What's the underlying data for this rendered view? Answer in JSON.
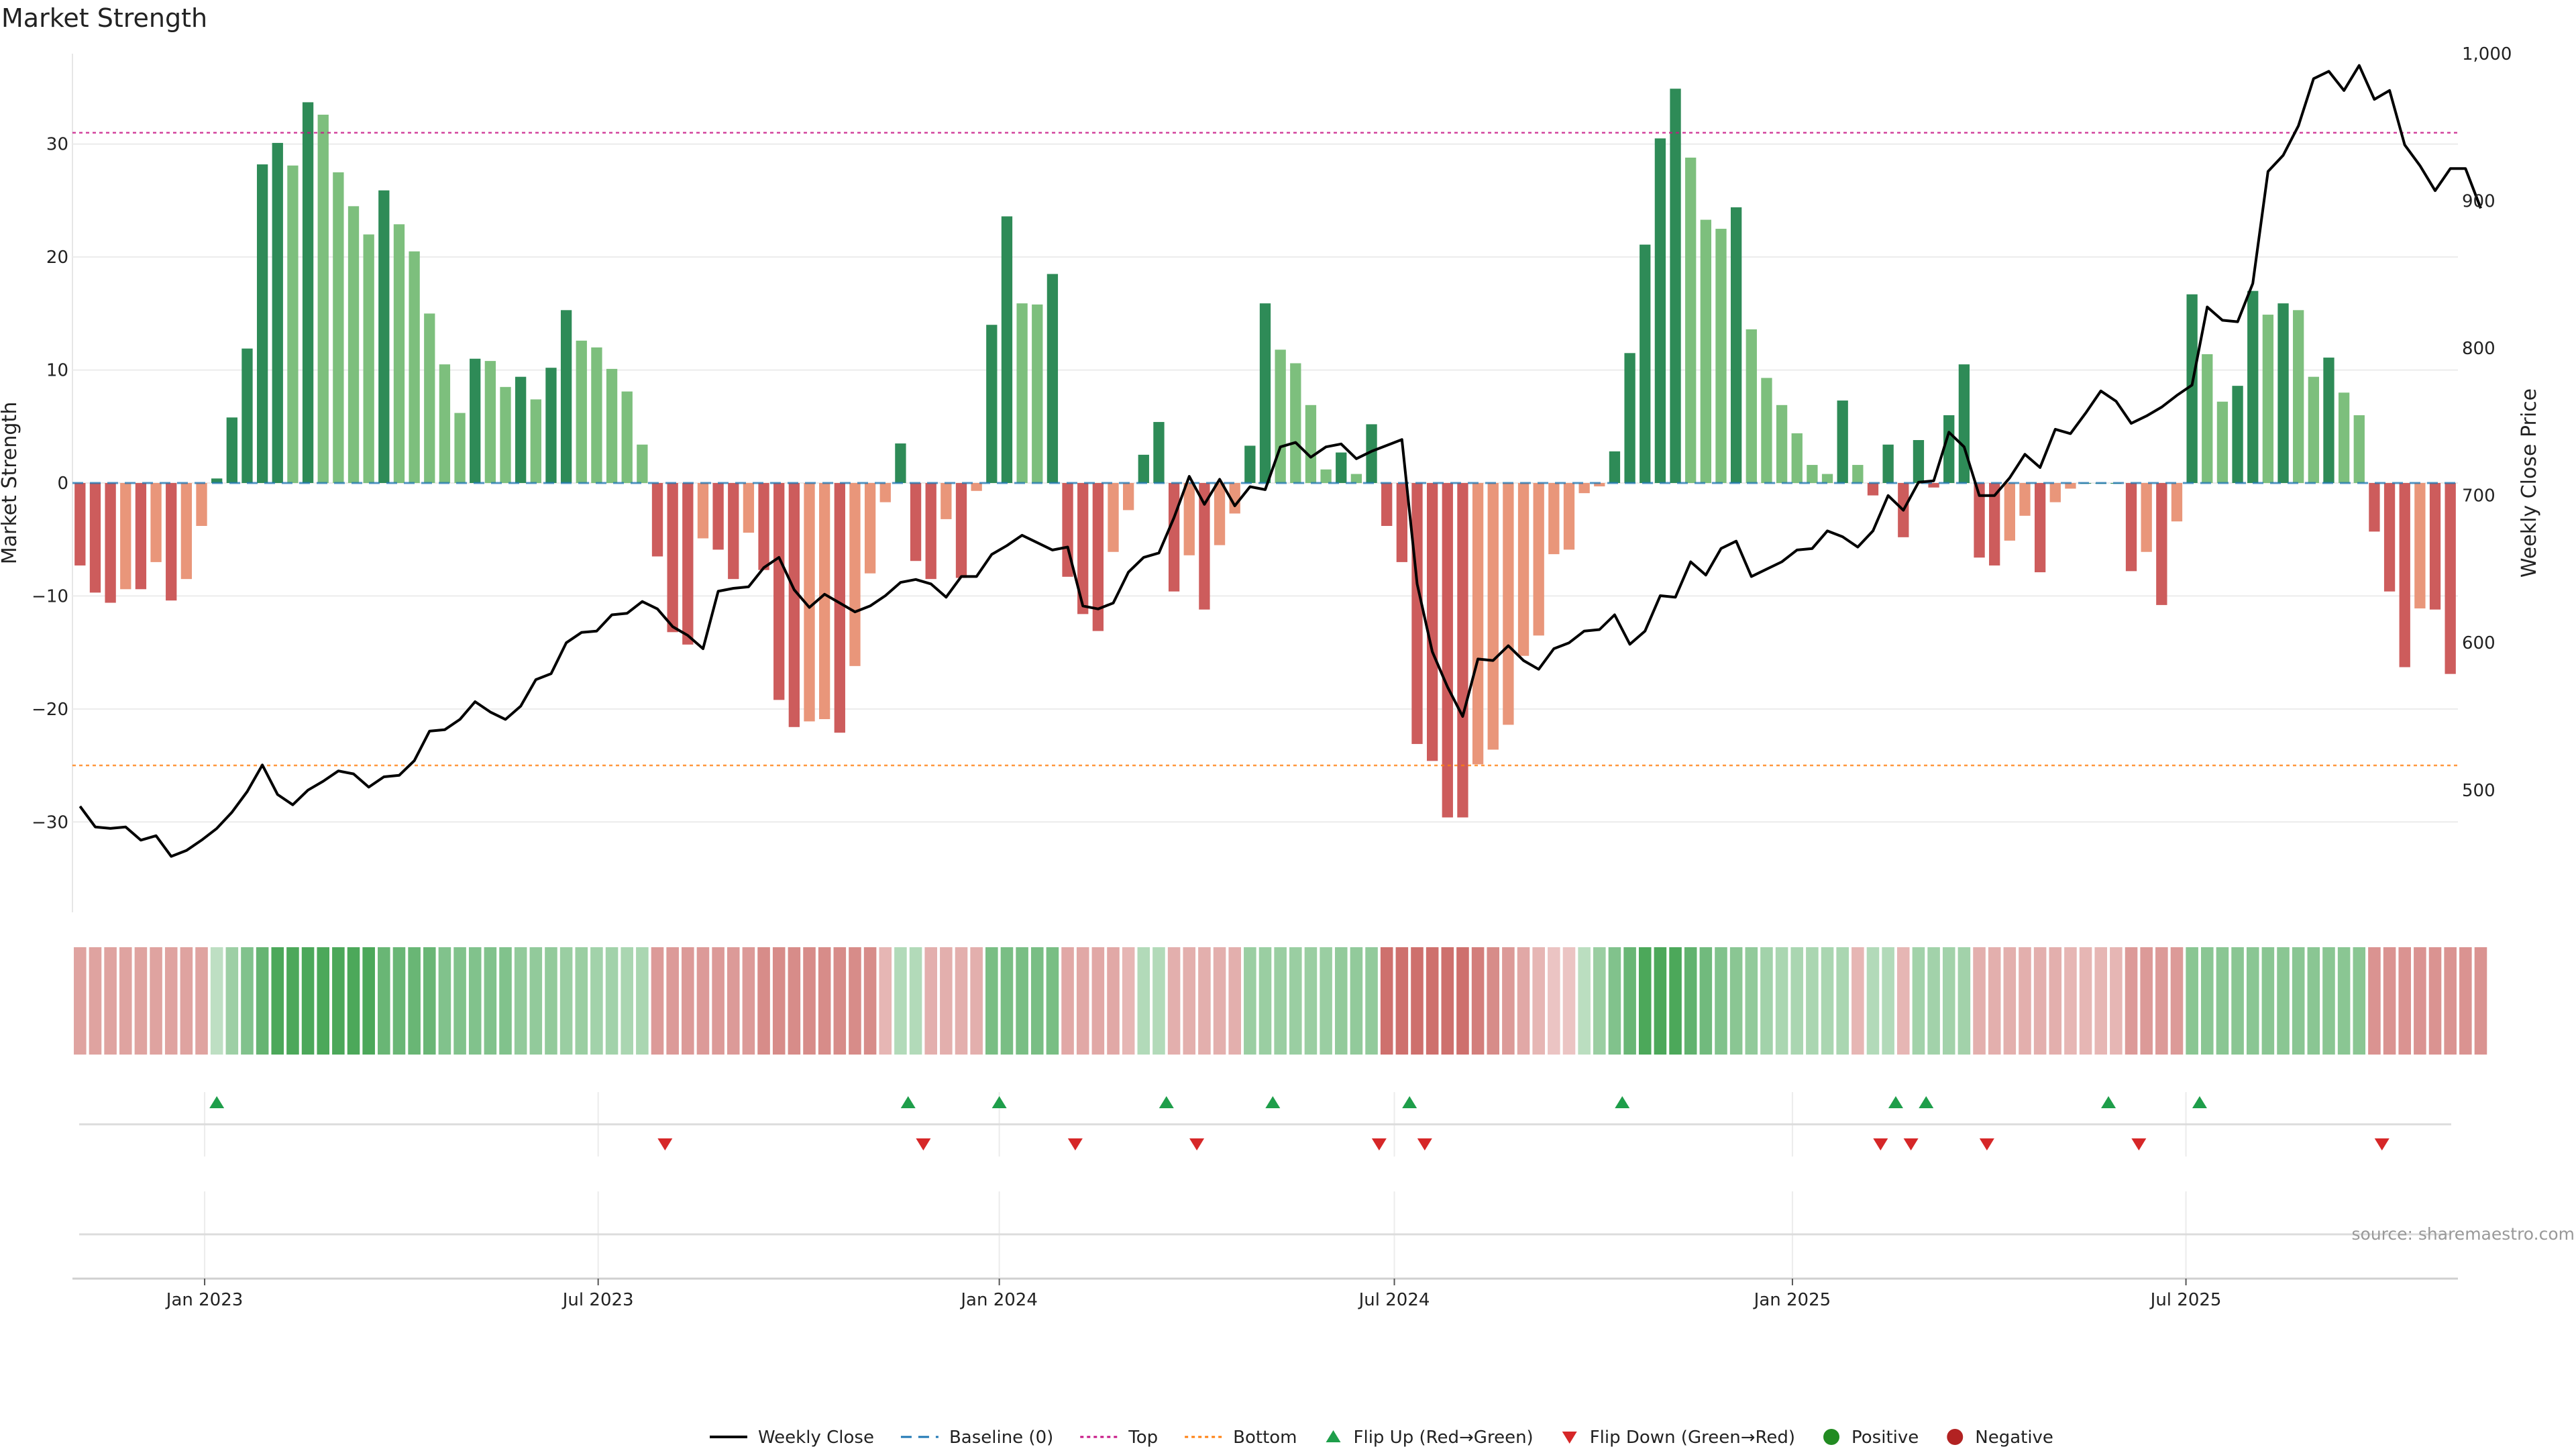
{
  "chart_data": {
    "type": "bar+line",
    "title": "Market Strength",
    "ylabel_left": "Market Strength",
    "ylabel_right": "Weekly Close Price",
    "ylim_left": [
      -38,
      38
    ],
    "ylim_right": [
      417,
      1000
    ],
    "yticks_left": [
      -30,
      -20,
      -10,
      0,
      10,
      20,
      30
    ],
    "yticks_right": [
      500,
      600,
      700,
      800,
      900,
      1000
    ],
    "yticks_right_labels": [
      "500",
      "600",
      "700",
      "800",
      "900",
      "1,000"
    ],
    "yticks_left_labels": [
      "−30",
      "−20",
      "−10",
      "0",
      "10",
      "20",
      "30"
    ],
    "top_threshold": 31,
    "bottom_threshold": -25,
    "baseline": 0,
    "x_ticks": [
      "Jan 2023",
      "Jul 2023",
      "Jan 2024",
      "Jul 2024",
      "Jan 2025",
      "Jul 2025"
    ],
    "x_tick_weeks": [
      8.2,
      34.1,
      60.5,
      86.5,
      112.7,
      138.6
    ],
    "market_strength": [
      -7.3,
      -9.7,
      -10.6,
      -9.4,
      -9.4,
      -7,
      -10.4,
      -8.5,
      -3.8,
      0.4,
      5.8,
      11.9,
      28.2,
      30.1,
      28.1,
      33.7,
      32.6,
      27.5,
      24.5,
      22,
      25.9,
      22.9,
      20.5,
      15,
      10.5,
      6.2,
      11,
      10.8,
      8.5,
      9.4,
      7.4,
      10.2,
      15.3,
      12.6,
      12,
      10.1,
      8.1,
      3.4,
      -6.5,
      -13.2,
      -14.3,
      -4.9,
      -5.9,
      -8.5,
      -4.4,
      -7.7,
      -19.2,
      -21.6,
      -21.1,
      -20.9,
      -22.1,
      -16.2,
      -8,
      -1.7,
      3.5,
      -6.9,
      -8.5,
      -3.2,
      -8.4,
      -0.7,
      14,
      23.6,
      15.9,
      15.8,
      18.5,
      -8.3,
      -11.6,
      -13.1,
      -6.1,
      -2.4,
      2.5,
      5.4,
      -9.6,
      -6.4,
      -11.2,
      -5.5,
      -2.7,
      3.3,
      15.9,
      11.8,
      10.6,
      6.9,
      1.2,
      2.7,
      0.8,
      5.2,
      -3.8,
      -7,
      -23.1,
      -24.6,
      -29.6,
      -29.6,
      -24.9,
      -23.6,
      -21.4,
      -15.3,
      -13.5,
      -6.3,
      -5.9,
      -0.9,
      -0.3,
      2.8,
      11.5,
      21.1,
      30.5,
      34.9,
      28.8,
      23.3,
      22.5,
      24.4,
      13.6,
      9.3,
      6.9,
      4.4,
      1.6,
      0.8,
      7.3,
      1.6,
      -1.1,
      3.4,
      -4.8,
      3.8,
      -0.4,
      6,
      10.5,
      -6.6,
      -7.3,
      -5.1,
      -2.9,
      -7.9,
      -1.7,
      -0.5,
      0,
      0,
      0,
      -7.8,
      -6.1,
      -10.8,
      -3.4,
      16.7,
      11.4,
      7.2,
      8.6,
      17,
      14.9,
      15.9,
      15.3,
      9.4,
      11.1,
      8,
      6,
      -4.3,
      -9.6,
      -16.3,
      -11.1,
      -11.2,
      -16.9
    ],
    "weekly_close": [
      489,
      475,
      474,
      475,
      466,
      469,
      455,
      459,
      466,
      474,
      485,
      499,
      517,
      497,
      490,
      500,
      506,
      513,
      511,
      502,
      509,
      510,
      520,
      540,
      541,
      548,
      560,
      553,
      548,
      557,
      575,
      579,
      600,
      607,
      608,
      619,
      620,
      628,
      623,
      611,
      605,
      596,
      635,
      637,
      638,
      651,
      658,
      636,
      624,
      633,
      627,
      621,
      625,
      632,
      641,
      643,
      640,
      631,
      645,
      645,
      660,
      666,
      673,
      668,
      663,
      665,
      625,
      623,
      627,
      648,
      658,
      661,
      685,
      713,
      694,
      711,
      693,
      706,
      704,
      733,
      736,
      726,
      733,
      735,
      725,
      730,
      734,
      738,
      640,
      594,
      570,
      550,
      589,
      588,
      598,
      588,
      582,
      596,
      600,
      608,
      609,
      619,
      599,
      608,
      632,
      631,
      655,
      646,
      664,
      669,
      645,
      650,
      655,
      663,
      664,
      676,
      672,
      665,
      676,
      700,
      690,
      709,
      710,
      743,
      733,
      700,
      700,
      712,
      728,
      719,
      745,
      742,
      756,
      771,
      764,
      749,
      754,
      760,
      768,
      775,
      828,
      819,
      818,
      844,
      920,
      931,
      951,
      983,
      988,
      975,
      992,
      969,
      975,
      938,
      924,
      907,
      922,
      922,
      895
    ],
    "heat_strip_intensity": [
      -0.44,
      -0.44,
      -0.44,
      -0.44,
      -0.44,
      -0.44,
      -0.44,
      -0.44,
      -0.44,
      0.18,
      0.38,
      0.55,
      0.72,
      0.88,
      0.88,
      0.88,
      0.88,
      0.88,
      0.88,
      0.88,
      0.7,
      0.7,
      0.7,
      0.7,
      0.55,
      0.55,
      0.55,
      0.55,
      0.55,
      0.45,
      0.45,
      0.45,
      0.4,
      0.4,
      0.35,
      0.35,
      0.3,
      0.3,
      -0.5,
      -0.5,
      -0.5,
      -0.5,
      -0.5,
      -0.5,
      -0.5,
      -0.6,
      -0.6,
      -0.6,
      -0.6,
      -0.6,
      -0.6,
      -0.6,
      -0.6,
      -0.3,
      0.25,
      0.25,
      -0.35,
      -0.35,
      -0.35,
      -0.35,
      0.6,
      0.6,
      0.6,
      0.6,
      0.6,
      -0.4,
      -0.4,
      -0.4,
      -0.4,
      -0.3,
      0.25,
      0.25,
      -0.35,
      -0.35,
      -0.35,
      -0.35,
      -0.35,
      0.4,
      0.4,
      0.4,
      0.4,
      0.4,
      0.4,
      0.45,
      0.45,
      0.45,
      -0.8,
      -0.8,
      -0.8,
      -0.8,
      -0.8,
      -0.8,
      -0.7,
      -0.6,
      -0.5,
      -0.4,
      -0.3,
      -0.2,
      -0.2,
      0.2,
      0.4,
      0.55,
      0.7,
      0.88,
      0.88,
      0.88,
      0.75,
      0.65,
      0.55,
      0.5,
      0.45,
      0.35,
      0.3,
      0.3,
      0.3,
      0.3,
      0.3,
      -0.3,
      0.25,
      0.25,
      -0.3,
      0.35,
      0.35,
      0.35,
      0.35,
      -0.35,
      -0.35,
      -0.35,
      -0.35,
      -0.35,
      -0.35,
      -0.3,
      -0.3,
      -0.3,
      -0.3,
      -0.5,
      -0.5,
      -0.5,
      -0.5,
      0.5,
      0.5,
      0.5,
      0.5,
      0.5,
      0.5,
      0.5,
      0.5,
      0.5,
      0.5,
      0.5,
      0.5,
      -0.55,
      -0.55,
      -0.55,
      -0.55,
      -0.55,
      -0.55,
      -0.55,
      -0.55
    ],
    "flip_up_weeks": [
      9,
      54.5,
      60.5,
      71.5,
      78.5,
      87.5,
      101.5,
      119.5,
      121.5,
      133.5,
      139.5
    ],
    "flip_down_weeks": [
      38.5,
      55.5,
      65.5,
      73.5,
      85.5,
      88.5,
      118.5,
      120.5,
      125.5,
      135.5,
      151.5
    ],
    "colors": {
      "strong_green": "#2e8b57",
      "light_green": "#7dbf7d",
      "strong_red": "#cd5c5c",
      "light_red": "#e9967a",
      "top_line": "#c71585",
      "bottom_line": "#ff7f0e",
      "baseline": "#1f77b4",
      "close_line": "#000000",
      "flip_up": "#1e9e4a",
      "flip_down": "#d62728",
      "positive": "#228b22",
      "negative": "#b22222"
    },
    "legend": [
      {
        "label": "Weekly Close",
        "kind": "line-solid",
        "color": "#000000"
      },
      {
        "label": "Baseline (0)",
        "kind": "line-dashed",
        "color": "#1f77b4"
      },
      {
        "label": "Top",
        "kind": "line-dotted",
        "color": "#c71585"
      },
      {
        "label": "Bottom",
        "kind": "line-dotted",
        "color": "#ff7f0e"
      },
      {
        "label": "Flip Up (Red→Green)",
        "kind": "tri-up",
        "color": "#1e9e4a"
      },
      {
        "label": "Flip Down (Green→Red)",
        "kind": "tri-down",
        "color": "#d62728"
      },
      {
        "label": "Positive",
        "kind": "dot",
        "color": "#228b22"
      },
      {
        "label": "Negative",
        "kind": "dot",
        "color": "#b22222"
      }
    ],
    "source_note": "source: sharemaestro.com"
  }
}
